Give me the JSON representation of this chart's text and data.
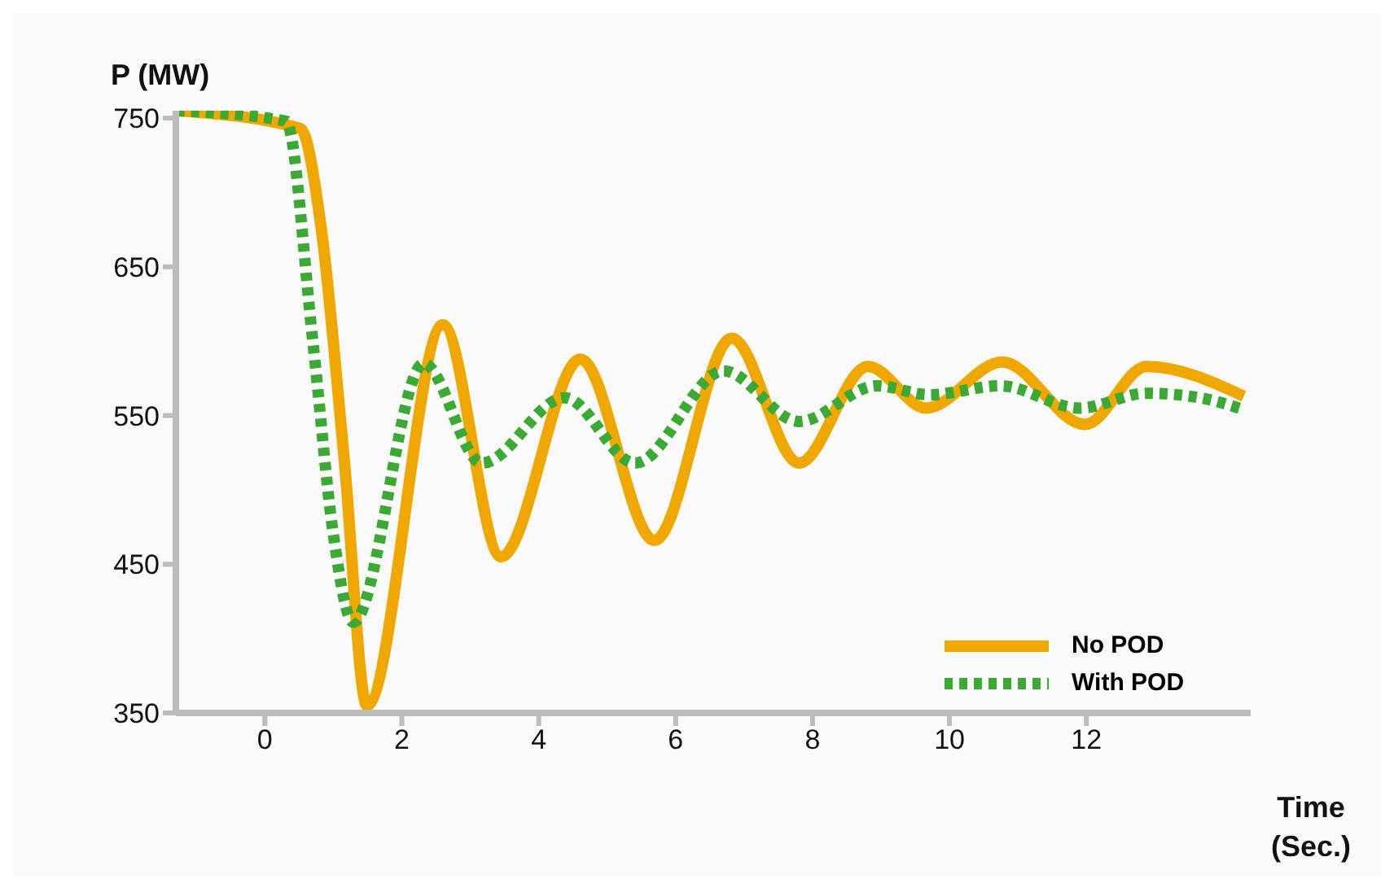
{
  "chart_data": {
    "type": "line",
    "xlabel": "Time (Sec.)",
    "ylabel": "P (MW)",
    "xlim": [
      -1.3,
      14.4
    ],
    "ylim": [
      350,
      755
    ],
    "xticks": [
      0,
      2,
      4,
      6,
      8,
      10,
      12
    ],
    "yticks": [
      350,
      450,
      550,
      650,
      750
    ],
    "grid": false,
    "legend": "bottom right",
    "marker": "none",
    "series": [
      {
        "name": "No POD",
        "color": "#f0a800",
        "line_style": "solid",
        "x": [
          -1.29,
          0.52,
          0.82,
          1.16,
          1.49,
          2.6,
          3.45,
          4.61,
          5.69,
          6.82,
          7.8,
          8.81,
          9.66,
          10.77,
          11.98,
          12.88,
          14.3
        ],
        "values": [
          755,
          743,
          677,
          520,
          355,
          611,
          455,
          588,
          466,
          602,
          518,
          583,
          555,
          586,
          544,
          583,
          563
        ]
      },
      {
        "name": "With POD",
        "color": "#3aaa35",
        "line_style": "dotted",
        "x": [
          -1.29,
          0.31,
          0.7,
          1.0,
          1.29,
          2.32,
          3.17,
          4.38,
          5.41,
          6.7,
          7.8,
          8.94,
          9.71,
          10.74,
          11.9,
          12.88,
          13.65,
          14.3
        ],
        "values": [
          755,
          748,
          600,
          470,
          411,
          585,
          518,
          562,
          518,
          580,
          546,
          570,
          564,
          570,
          555,
          565,
          562,
          554
        ]
      }
    ]
  }
}
